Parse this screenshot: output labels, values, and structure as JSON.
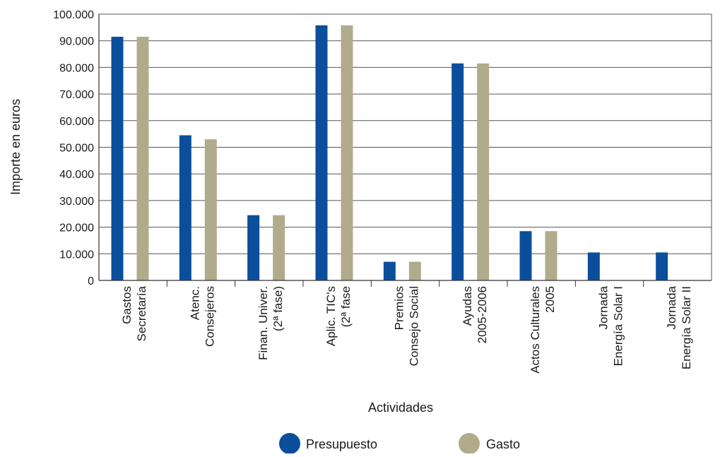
{
  "chart_data": {
    "type": "bar",
    "title": "",
    "xlabel": "Actividades",
    "ylabel": "Importe en euros",
    "ylim": [
      0,
      100000
    ],
    "yticks": [
      0,
      10000,
      20000,
      30000,
      40000,
      50000,
      60000,
      70000,
      80000,
      90000,
      100000
    ],
    "ytick_labels": [
      "0",
      "10.000",
      "20.000",
      "30.000",
      "40.000",
      "50.000",
      "60.000",
      "70.000",
      "80.000",
      "90.000",
      "100.000"
    ],
    "grid": "horizontal",
    "legend_position": "bottom-center",
    "categories": [
      [
        "Gastos",
        "Secretaría"
      ],
      [
        "Atenc.",
        "Consejeros"
      ],
      [
        "Finan. Univer.",
        "(2ª fase)"
      ],
      [
        "Aplic. TIC's",
        "(2ª fase"
      ],
      [
        "Premios",
        "Consejo Social"
      ],
      [
        "Ayudas",
        "2005-2006"
      ],
      [
        "Actos Culturales",
        "2005"
      ],
      [
        "Jornada",
        "Energía Solar I"
      ],
      [
        "Jornada",
        "Energía Solar II"
      ]
    ],
    "series": [
      {
        "name": "Presupuesto",
        "color": "#0b4f9c",
        "values": [
          91500,
          54500,
          24500,
          95800,
          7000,
          81500,
          18500,
          10500,
          10500
        ]
      },
      {
        "name": "Gasto",
        "color": "#b1ab8c",
        "values": [
          91500,
          53000,
          24500,
          95800,
          7000,
          81500,
          18500,
          0,
          0
        ]
      }
    ]
  }
}
